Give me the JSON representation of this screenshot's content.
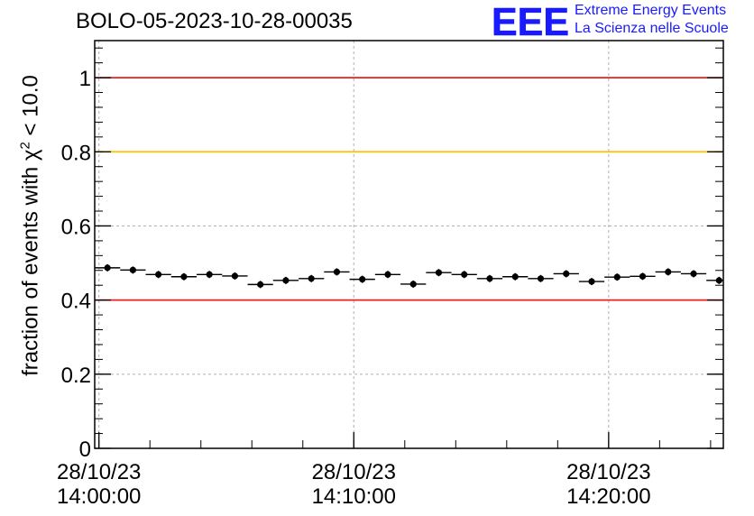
{
  "chart_data": {
    "type": "scatter",
    "title": "BOLO-05-2023-10-28-00035",
    "ylabel": {
      "prefix": "fraction of events with ",
      "symbol": "χ",
      "superscript": "2",
      "suffix": " < 10.0"
    },
    "xlabel": "",
    "ylim": [
      0,
      1.1
    ],
    "y_ticks": [
      "0",
      "0.2",
      "0.4",
      "0.6",
      "0.8",
      "1"
    ],
    "x_start": "28/10/23 13:59:50",
    "x_end": "28/10/23 14:24:30",
    "x_ticks": [
      {
        "date": "28/10/23",
        "time": "14:00:00"
      },
      {
        "date": "28/10/23",
        "time": "14:10:00"
      },
      {
        "date": "28/10/23",
        "time": "14:20:00"
      }
    ],
    "grid": true,
    "reference_lines": [
      {
        "y": 1.0,
        "color": "#e8201e"
      },
      {
        "y": 0.8,
        "color": "#ffc000"
      },
      {
        "y": 0.4,
        "color": "#e8201e"
      }
    ],
    "points": [
      {
        "x": "14:00:20",
        "y": 0.487
      },
      {
        "x": "14:01:20",
        "y": 0.481
      },
      {
        "x": "14:02:20",
        "y": 0.469
      },
      {
        "x": "14:03:20",
        "y": 0.463
      },
      {
        "x": "14:04:20",
        "y": 0.469
      },
      {
        "x": "14:05:20",
        "y": 0.465
      },
      {
        "x": "14:06:20",
        "y": 0.442
      },
      {
        "x": "14:07:20",
        "y": 0.453
      },
      {
        "x": "14:08:20",
        "y": 0.458
      },
      {
        "x": "14:09:20",
        "y": 0.476
      },
      {
        "x": "14:10:20",
        "y": 0.456
      },
      {
        "x": "14:11:20",
        "y": 0.469
      },
      {
        "x": "14:12:20",
        "y": 0.443
      },
      {
        "x": "14:13:20",
        "y": 0.474
      },
      {
        "x": "14:14:20",
        "y": 0.469
      },
      {
        "x": "14:15:20",
        "y": 0.458
      },
      {
        "x": "14:16:20",
        "y": 0.463
      },
      {
        "x": "14:17:20",
        "y": 0.458
      },
      {
        "x": "14:18:20",
        "y": 0.471
      },
      {
        "x": "14:19:20",
        "y": 0.45
      },
      {
        "x": "14:20:20",
        "y": 0.462
      },
      {
        "x": "14:21:20",
        "y": 0.464
      },
      {
        "x": "14:22:20",
        "y": 0.476
      },
      {
        "x": "14:23:20",
        "y": 0.471
      },
      {
        "x": "14:24:20",
        "y": 0.453
      }
    ]
  },
  "logo": {
    "letters": "EEE",
    "line1": "Extreme Energy Events",
    "line2": "La Scienza nelle Scuole",
    "color": "#1a1aff"
  }
}
